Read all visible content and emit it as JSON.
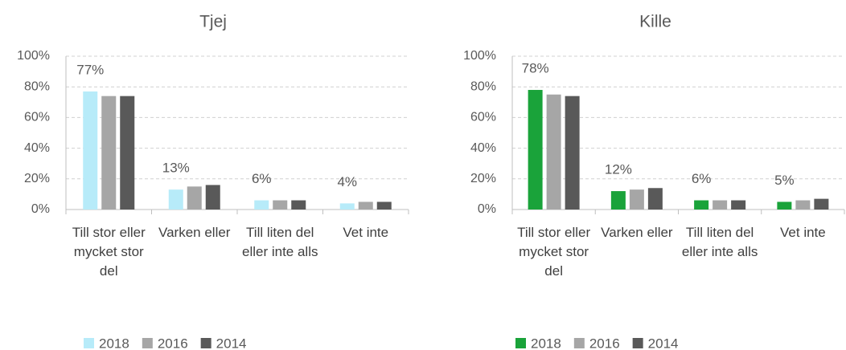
{
  "chart_data": [
    {
      "type": "bar",
      "title": "Tjej",
      "categories": [
        "Till stor eller mycket stor del",
        "Varken eller",
        "Till liten del eller inte alls",
        "Vet inte"
      ],
      "series": [
        {
          "name": "2018",
          "color": "#b7ebf9",
          "values": [
            77,
            13,
            6,
            4
          ],
          "value_labels": [
            "77%",
            "13%",
            "6%",
            "4%"
          ]
        },
        {
          "name": "2016",
          "color": "#a6a6a6",
          "values": [
            74,
            15,
            6,
            5
          ]
        },
        {
          "name": "2014",
          "color": "#595959",
          "values": [
            74,
            16,
            6,
            5
          ]
        }
      ],
      "ylim": [
        0,
        100
      ],
      "yticks": [
        {
          "value": 0,
          "label": "0%"
        },
        {
          "value": 20,
          "label": "20%"
        },
        {
          "value": 40,
          "label": "40%"
        },
        {
          "value": 60,
          "label": "60%"
        },
        {
          "value": 80,
          "label": "80%"
        },
        {
          "value": 100,
          "label": "100%"
        }
      ],
      "grid": true
    },
    {
      "type": "bar",
      "title": "Kille",
      "categories": [
        "Till stor eller mycket stor del",
        "Varken eller",
        "Till liten del eller inte alls",
        "Vet inte"
      ],
      "series": [
        {
          "name": "2018",
          "color": "#1aa33a",
          "values": [
            78,
            12,
            6,
            5
          ],
          "value_labels": [
            "78%",
            "12%",
            "6%",
            "5%"
          ]
        },
        {
          "name": "2016",
          "color": "#a6a6a6",
          "values": [
            75,
            13,
            6,
            6
          ]
        },
        {
          "name": "2014",
          "color": "#595959",
          "values": [
            74,
            14,
            6,
            7
          ]
        }
      ],
      "ylim": [
        0,
        100
      ],
      "yticks": [
        {
          "value": 0,
          "label": "0%"
        },
        {
          "value": 20,
          "label": "20%"
        },
        {
          "value": 40,
          "label": "40%"
        },
        {
          "value": 60,
          "label": "60%"
        },
        {
          "value": 80,
          "label": "80%"
        },
        {
          "value": 100,
          "label": "100%"
        }
      ],
      "grid": true
    }
  ]
}
